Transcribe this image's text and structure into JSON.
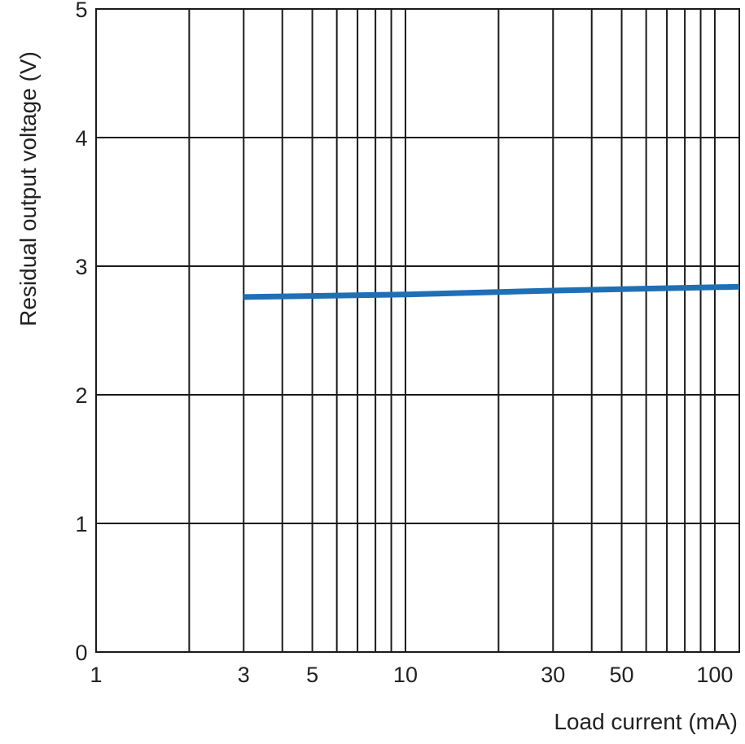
{
  "chart_data": {
    "type": "line",
    "x_scale": "log",
    "xlim": [
      1,
      120
    ],
    "ylim": [
      0,
      5
    ],
    "xlabel": "Load current (mA)",
    "ylabel": "Residual output voltage (V)",
    "x_tick_labels": [
      {
        "value": 1,
        "label": "1"
      },
      {
        "value": 3,
        "label": "3"
      },
      {
        "value": 5,
        "label": "5"
      },
      {
        "value": 10,
        "label": "10"
      },
      {
        "value": 30,
        "label": "30"
      },
      {
        "value": 50,
        "label": "50"
      },
      {
        "value": 100,
        "label": "100"
      }
    ],
    "x_gridlines": [
      2,
      3,
      4,
      5,
      6,
      7,
      8,
      9,
      10,
      20,
      30,
      40,
      50,
      60,
      70,
      80,
      90,
      100
    ],
    "y_ticks": [
      0,
      1,
      2,
      3,
      4,
      5
    ],
    "grid": true,
    "series": [
      {
        "color": "#1f6fb5",
        "x": [
          3,
          10,
          30,
          120
        ],
        "y": [
          2.76,
          2.78,
          2.81,
          2.84
        ]
      }
    ]
  }
}
